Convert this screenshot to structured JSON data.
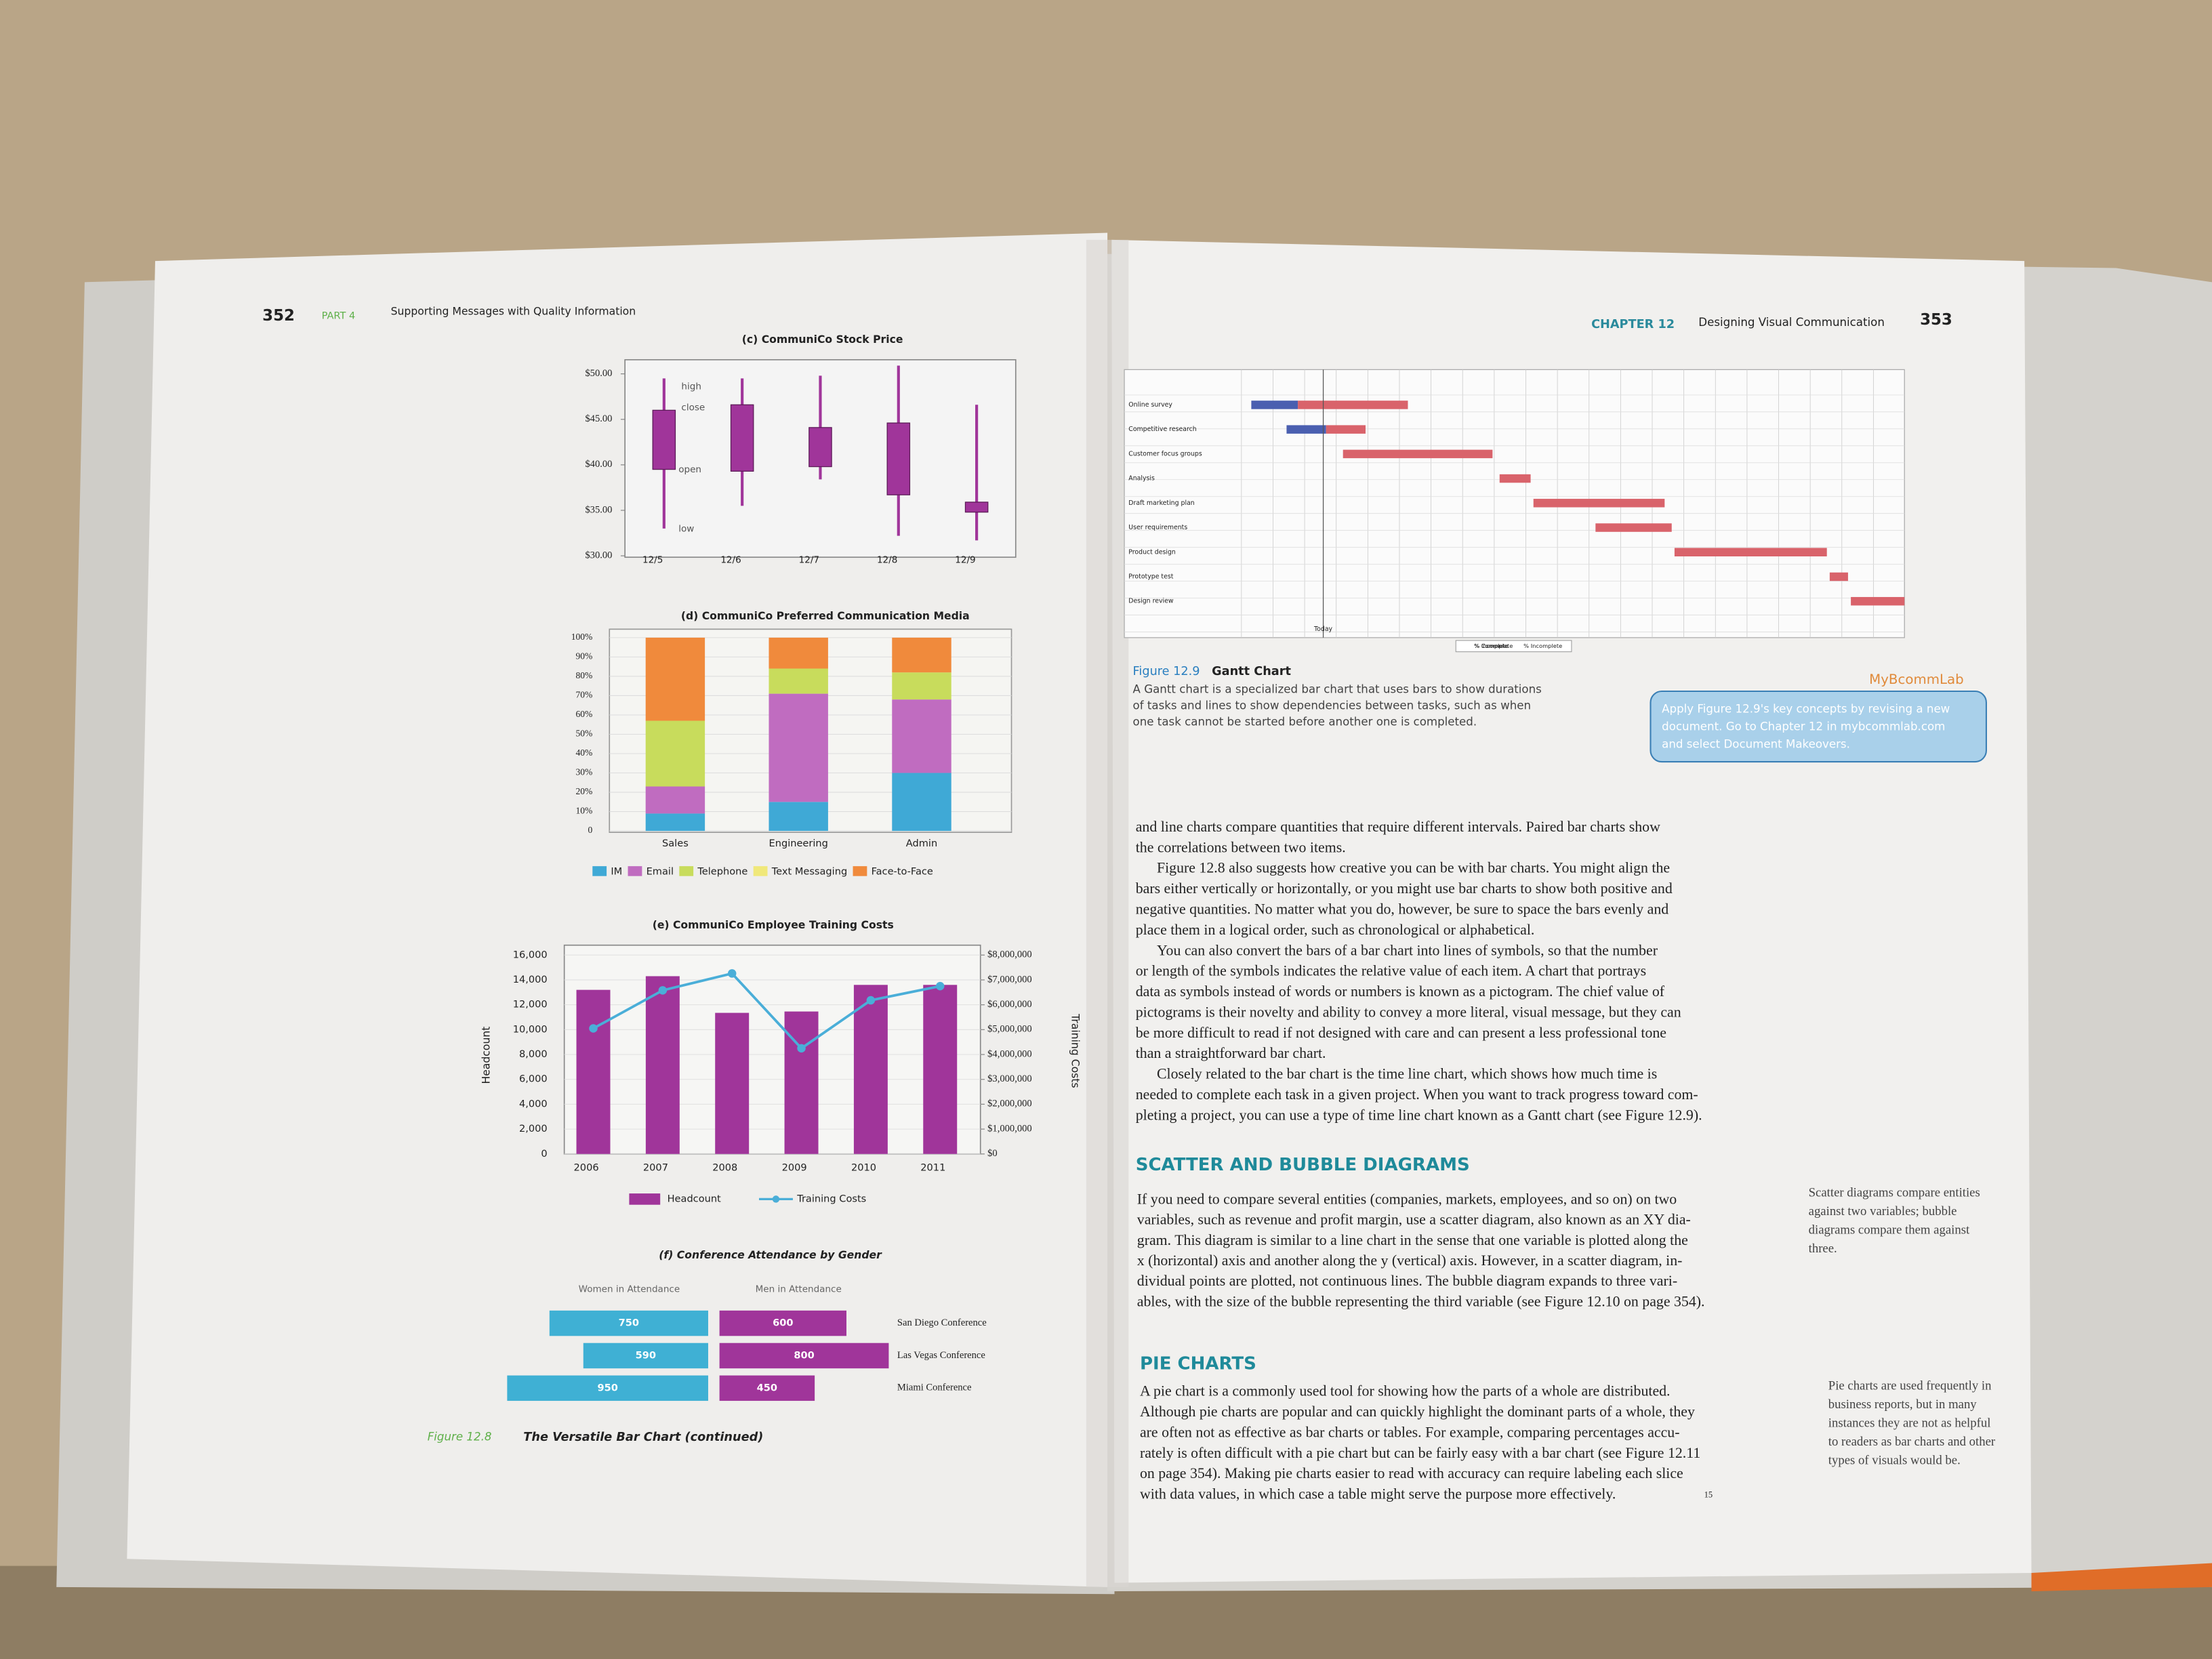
{
  "chart_data": [
    {
      "type": "candlestick",
      "title": "(c) CommuniCo Stock Price",
      "categories": [
        "12/5",
        "12/6",
        "12/7",
        "12/8",
        "12/9"
      ],
      "open": [
        39.5,
        39.3,
        39.8,
        36.7,
        34.8
      ],
      "high": [
        49.5,
        49.5,
        49.8,
        50.9,
        46.6
      ],
      "low": [
        33.0,
        35.5,
        38.4,
        32.2,
        31.7
      ],
      "close": [
        46.0,
        46.6,
        44.1,
        44.6,
        35.9
      ],
      "color": "#a0359a",
      "annotations": [
        "high",
        "close",
        "open",
        "low"
      ],
      "ylim": [
        30,
        50
      ],
      "yticks": [
        {
          "value": 30,
          "label": "$30.00"
        },
        {
          "value": 35,
          "label": "$35.00"
        },
        {
          "value": 40,
          "label": "$40.00"
        },
        {
          "value": 45,
          "label": "$45.00"
        },
        {
          "value": 50,
          "label": "$50.00"
        }
      ]
    },
    {
      "type": "bar",
      "stacked": true,
      "title": "(d) CommuniCo Preferred Communication Media",
      "categories": [
        "Sales",
        "Engineering",
        "Admin"
      ],
      "series": [
        {
          "name": "IM",
          "color": "#3fa9d6",
          "values": [
            9,
            15,
            30
          ]
        },
        {
          "name": "Email",
          "color": "#c06cc0",
          "values": [
            14,
            56,
            38
          ]
        },
        {
          "name": "Telephone",
          "color": "#c8dc5c",
          "values": [
            34,
            13,
            14
          ]
        },
        {
          "name": "Text Messaging",
          "color": "#f0e87a",
          "values": [
            0,
            0,
            0
          ]
        },
        {
          "name": "Face-to-Face",
          "color": "#f08a3c",
          "values": [
            43,
            16,
            18
          ]
        }
      ],
      "ylim": [
        0,
        100
      ],
      "yticks": [
        0,
        {
          "value": 10,
          "label": "10%"
        },
        {
          "value": 20,
          "label": "20%"
        },
        {
          "value": 30,
          "label": "30%"
        },
        {
          "value": 40,
          "label": "40%"
        },
        {
          "value": 50,
          "label": "50%"
        },
        {
          "value": 60,
          "label": "60%"
        },
        {
          "value": 70,
          "label": "70%"
        },
        {
          "value": 80,
          "label": "80%"
        },
        {
          "value": 90,
          "label": "90%"
        },
        {
          "value": 100,
          "label": "100%"
        }
      ]
    },
    {
      "type": "combo",
      "title": "(e) CommuniCo Employee Training Costs",
      "categories": [
        "2006",
        "2007",
        "2008",
        "2009",
        "2010",
        "2011"
      ],
      "ylabel": "Headcount",
      "y2label": "Training Costs",
      "series": [
        {
          "name": "Headcount",
          "color": "#a0359a",
          "values": [
            13200,
            14300,
            11350,
            11460,
            13600,
            13600
          ]
        },
        {
          "name": "Training Costs",
          "color": "#4aaed8",
          "axis": "y2",
          "values": [
            5050000,
            6580000,
            7260000,
            4250000,
            6180000,
            6750000
          ]
        }
      ],
      "ylim": [
        0,
        16000
      ],
      "yticks": [
        0,
        {
          "value": 2000,
          "label": "2,000"
        },
        {
          "value": 4000,
          "label": "4,000"
        },
        {
          "value": 6000,
          "label": "6,000"
        },
        {
          "value": 8000,
          "label": "8,000"
        },
        {
          "value": 10000,
          "label": "10,000"
        },
        {
          "value": 12000,
          "label": "12,000"
        },
        {
          "value": 14000,
          "label": "14,000"
        },
        {
          "value": 16000,
          "label": "16,000"
        }
      ],
      "y2lim": [
        0,
        8000000
      ],
      "y2ticks": [
        {
          "value": 0,
          "label": "$0"
        },
        {
          "value": 1000000,
          "label": "$1,000,000"
        },
        {
          "value": 2000000,
          "label": "$2,000,000"
        },
        {
          "value": 3000000,
          "label": "$3,000,000"
        },
        {
          "value": 4000000,
          "label": "$4,000,000"
        },
        {
          "value": 5000000,
          "label": "$5,000,000"
        },
        {
          "value": 6000000,
          "label": "$6,000,000"
        },
        {
          "value": 7000000,
          "label": "$7,000,000"
        },
        {
          "value": 8000000,
          "label": "$8,000,000"
        }
      ]
    },
    {
      "type": "diverging",
      "title": "(f) Conference Attendance by Gender",
      "categories": [
        "San Diego Conference",
        "Las Vegas Conference",
        "Miami Conference"
      ],
      "series": [
        {
          "name": "Women in Attendance",
          "color": "#3fb0d4",
          "values": [
            750,
            590,
            950
          ]
        },
        {
          "name": "Men in Attendance",
          "color": "#a0359a",
          "values": [
            600,
            800,
            450
          ]
        }
      ]
    }
  ],
  "left_page": {
    "page_number": "352",
    "part": "PART 4",
    "part_title": "Supporting Messages with Quality Information",
    "figure_label": "Figure 12.8",
    "figure_title": "The Versatile Bar Chart (continued)"
  },
  "right_page": {
    "chapter": "CHAPTER 12",
    "chapter_title": "Designing Visual Communication",
    "page_number": "353",
    "gantt": {
      "tasks": [
        "Online survey",
        "Competitive research",
        "Customer focus groups",
        "Analysis",
        "Draft marketing plan",
        "User requirements",
        "Product design",
        "Prototype test",
        "Design review"
      ],
      "today": "Today",
      "legend": [
        "% Complete",
        "% Incomplete"
      ]
    },
    "figure_label": "Figure 12.9",
    "figure_title": "Gantt Chart",
    "caption": [
      "A Gantt chart is a specialized bar chart that uses bars to show durations",
      "of tasks and lines to show dependencies between tasks, such as when",
      "one task cannot be started before another one is completed."
    ],
    "lab_title": "MyBcommLab",
    "lab_text": [
      "Apply Figure 12.9's key concepts by revising a new",
      "document. Go to Chapter 12 in mybcommlab.com",
      "and select Document Makeovers."
    ],
    "body": [
      [
        "and line charts compare quantities that require different intervals. Paired bar charts show",
        "the correlations between two items."
      ],
      [
        "Figure 12.8 also suggests how creative you can be with bar charts. You might align the",
        "bars either vertically or horizontally, or you might use bar charts to show both positive and",
        "negative quantities. No matter what you do, however, be sure to space the bars evenly and",
        "place them in a logical order, such as chronological or alphabetical."
      ],
      [
        "You can also convert the bars of a bar chart into lines of symbols, so that the number",
        "or length of the symbols indicates the relative value of each item. A chart that portrays",
        "data as symbols instead of words or numbers is known as a pictogram. The chief value of",
        "pictograms is their novelty and ability to convey a more literal, visual message, but they can",
        "be more difficult to read if not designed with care and can present a less professional tone",
        "than a straightforward bar chart."
      ],
      [
        "Closely related to the bar chart is the time line chart, which shows how much time is",
        "needed to complete each task in a given project. When you want to track progress toward com-",
        "pleting a project, you can use a type of time line chart known as a Gantt chart (see Figure 12.9)."
      ]
    ],
    "scatter_heading": "SCATTER AND BUBBLE DIAGRAMS",
    "scatter_text": [
      "If you need to compare several entities (companies, markets, employees, and so on) on two",
      "variables, such as revenue and profit margin, use a scatter diagram, also known as an XY dia-",
      "gram. This diagram is similar to a line chart in the sense that one variable is plotted along the",
      "x (horizontal) axis and another along the y (vertical) axis. However, in a scatter diagram, in-",
      "dividual points are plotted, not continuous lines. The bubble diagram expands to three vari-",
      "ables, with the size of the bubble representing the third variable (see Figure 12.10 on page 354)."
    ],
    "scatter_note": [
      "Scatter diagrams compare entities",
      "against two variables; bubble",
      "diagrams compare them against",
      "three."
    ],
    "pie_heading": "PIE CHARTS",
    "pie_text": [
      "A pie chart is a commonly used tool for showing how the parts of a whole are distributed.",
      "Although pie charts are popular and can quickly highlight the dominant parts of a whole, they",
      "are often not as effective as bar charts or tables. For example, comparing percentages accu-",
      "rately is often difficult with a pie chart but can be fairly easy with a bar chart (see Figure 12.11",
      "on page 354). Making pie charts easier to read with accuracy can require labeling each slice",
      "with data values, in which case a table might serve the purpose more effectively."
    ],
    "footnote": "15",
    "pie_note": [
      "Pie charts are used frequently in",
      "business reports, but in many",
      "instances they are not as helpful",
      "to readers as bar charts and other",
      "types of visuals would be."
    ]
  }
}
